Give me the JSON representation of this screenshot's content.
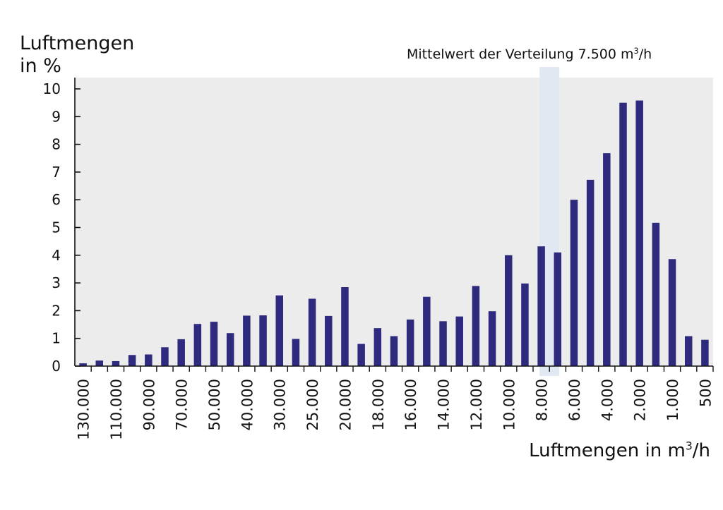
{
  "chart_data": {
    "type": "bar",
    "ylabel": "Luftmengen in %",
    "xlabel_prefix": "Luftmengen in m",
    "xlabel_sup": "3",
    "xlabel_suffix": "/h",
    "ylim": [
      0,
      10
    ],
    "yticks": [
      "0",
      "1",
      "2",
      "3",
      "4",
      "5",
      "6",
      "7",
      "8",
      "9",
      "10"
    ],
    "grid": false,
    "mean_annotation": {
      "prefix": "Mittelwert der Verteilung 7.500 m",
      "sup": "3",
      "suffix": "/h",
      "position_category_index": 29
    },
    "x_tick_labels": [
      "130.000",
      "110.000",
      "90.000",
      "70.000",
      "50.000",
      "40.000",
      "30.000",
      "25.000",
      "20.000",
      "18.000",
      "16.000",
      "14.000",
      "12.000",
      "10.000",
      "8.000",
      "6.000",
      "4.000",
      "2.000",
      "1.000",
      "500"
    ],
    "values": [
      0.1,
      0.2,
      0.18,
      0.4,
      0.42,
      0.68,
      0.97,
      1.52,
      1.6,
      1.19,
      1.82,
      1.83,
      2.55,
      0.98,
      2.43,
      1.81,
      2.85,
      0.8,
      1.37,
      1.08,
      1.68,
      2.5,
      1.62,
      1.79,
      2.89,
      1.98,
      4.0,
      2.98,
      4.32,
      4.1,
      6.0,
      6.72,
      7.68,
      9.5,
      9.58,
      5.17,
      3.86,
      1.08,
      0.95
    ],
    "colors": {
      "bar": "#2e2a7e",
      "plot_background": "#ececec",
      "mean_band": "#e2e8f2",
      "axis": "#111111"
    }
  }
}
